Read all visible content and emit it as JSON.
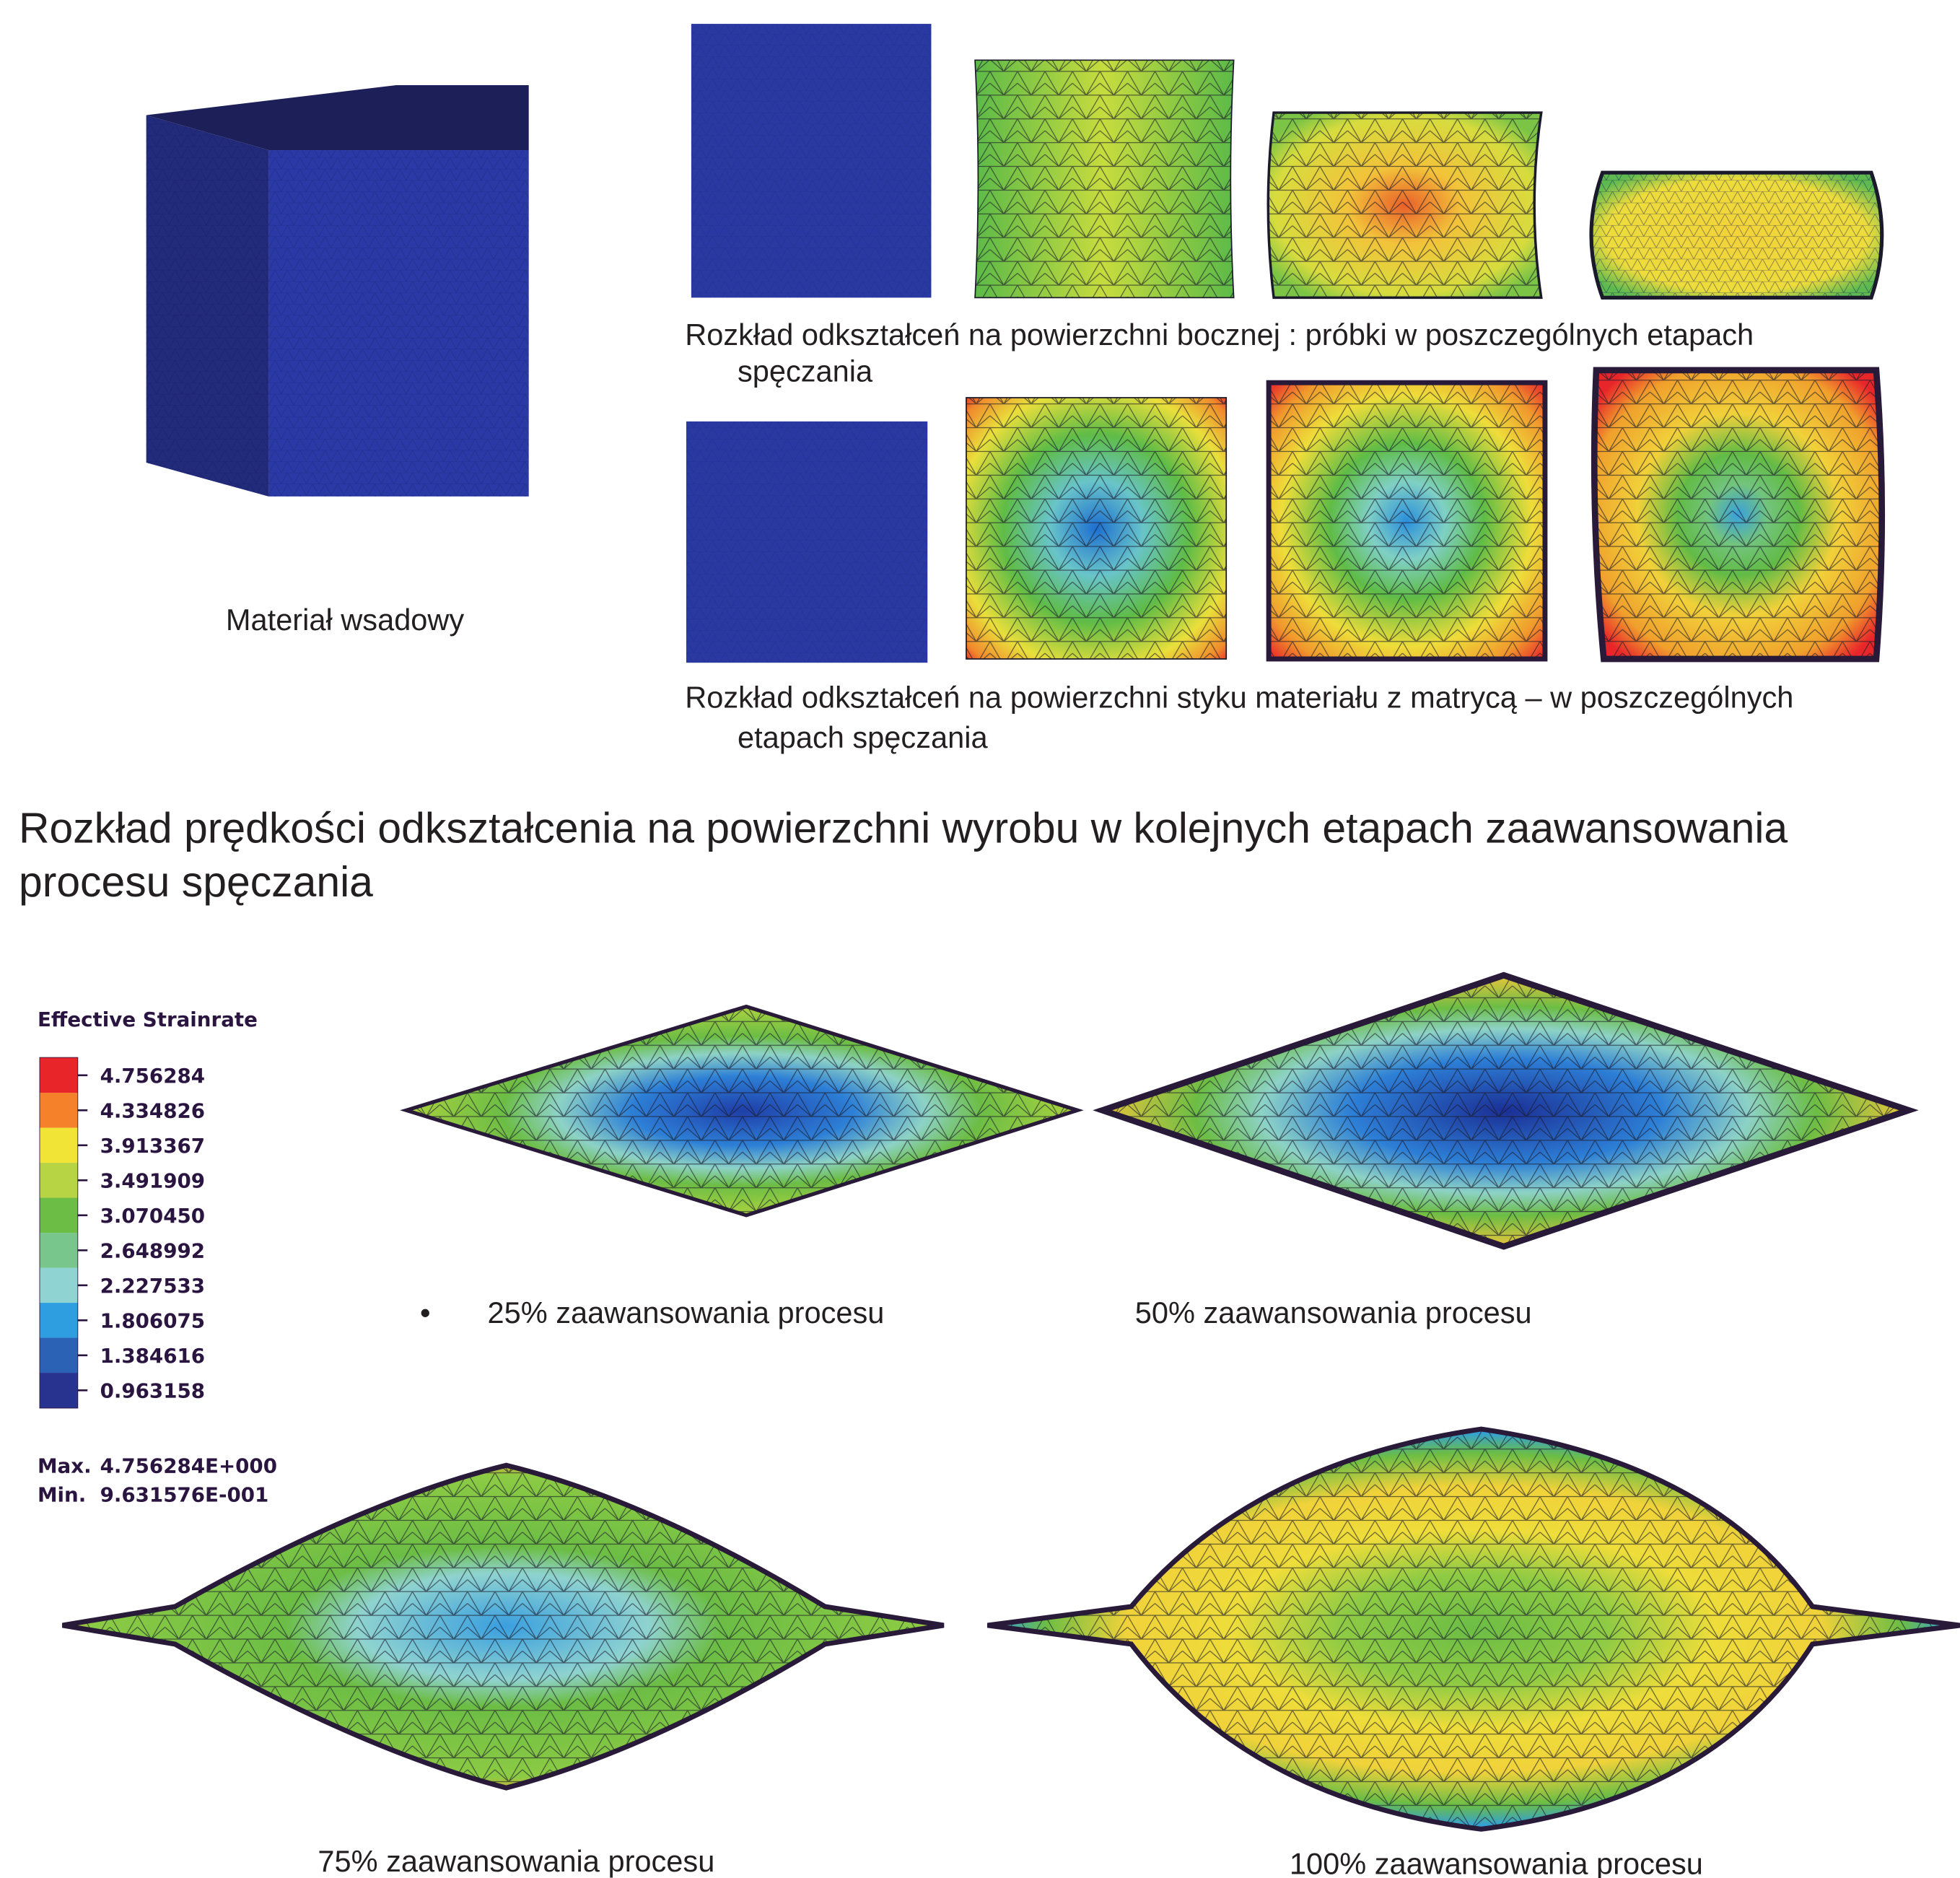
{
  "feedstock": {
    "caption": "Materiał wsadowy"
  },
  "side_surface": {
    "caption": [
      "Rozkład odkształceń na powierzchni bocznej :   próbki w poszczególnych etapach",
      "spęczania"
    ]
  },
  "contact_surface": {
    "caption": [
      "Rozkład odkształceń na powierzchni styku materiału z matrycą – w poszczególnych",
      "etapach spęczania"
    ]
  },
  "heading": [
    "Rozkład prędkości odkształcenia na powierzchni wyrobu w kolejnych etapach zaawansowania",
    "procesu spęczania"
  ],
  "legend": {
    "title": "Effective Strainrate",
    "values": [
      "4.756284",
      "4.334826",
      "3.913367",
      "3.491909",
      "3.070450",
      "2.648992",
      "2.227533",
      "1.806075",
      "1.384616",
      "0.963158"
    ],
    "max_label": "Max.",
    "max": "4.756284E+000",
    "min_label": "Min.",
    "min": "9.631576E-001"
  },
  "stages": [
    {
      "bullet": "•",
      "caption": "25% zaawansowania procesu"
    },
    {
      "caption": "50% zaawansowania procesu"
    },
    {
      "caption": "75% zaawansowania procesu"
    },
    {
      "caption": "100% zaawansowania procesu"
    }
  ]
}
